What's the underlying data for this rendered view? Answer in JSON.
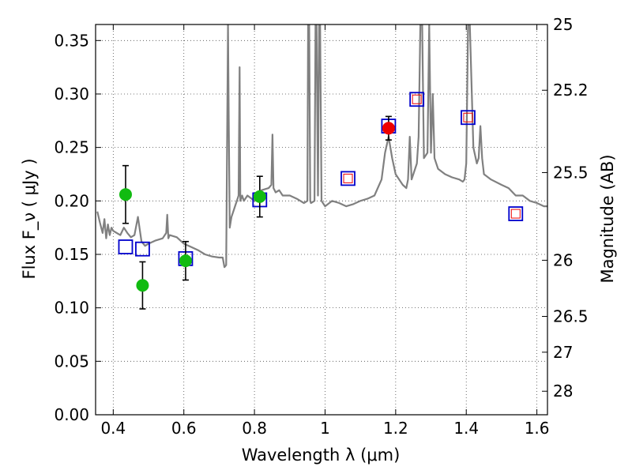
{
  "chart_data": {
    "type": "scatter",
    "xlabel": "Wavelength  λ (μm)",
    "ylabel": "Flux  F_ν  ( μJy )",
    "y2label": "Magnitude (AB)",
    "xlim": [
      0.35,
      1.63
    ],
    "ylim": [
      0.0,
      0.365
    ],
    "grid": true,
    "x_ticks": [
      0.4,
      0.6,
      0.8,
      1.0,
      1.2,
      1.4,
      1.6
    ],
    "x_tick_labels": [
      "0.4",
      "0.6",
      "0.8",
      "1",
      "1.2",
      "1.4",
      "1.6"
    ],
    "y_ticks": [
      0.0,
      0.05,
      0.1,
      0.15,
      0.2,
      0.25,
      0.3,
      0.35
    ],
    "y_tick_labels": [
      "0.00",
      "0.05",
      "0.10",
      "0.15",
      "0.20",
      "0.25",
      "0.30",
      "0.35"
    ],
    "y2_ticks": [
      {
        "label": "25",
        "flux": 0.365
      },
      {
        "label": "25.2",
        "flux": 0.3035
      },
      {
        "label": "25.5",
        "flux": 0.2265
      },
      {
        "label": "26",
        "flux": 0.1445
      },
      {
        "label": "26.5",
        "flux": 0.092
      },
      {
        "label": "27",
        "flux": 0.0585
      },
      {
        "label": "28",
        "flux": 0.022
      }
    ],
    "model_spectrum": {
      "name": "model",
      "color": "#808080",
      "x": [
        0.355,
        0.362,
        0.37,
        0.375,
        0.38,
        0.385,
        0.39,
        0.395,
        0.4,
        0.41,
        0.42,
        0.43,
        0.44,
        0.45,
        0.46,
        0.47,
        0.48,
        0.49,
        0.5,
        0.52,
        0.54,
        0.55,
        0.553,
        0.556,
        0.56,
        0.58,
        0.6,
        0.62,
        0.64,
        0.66,
        0.68,
        0.7,
        0.71,
        0.715,
        0.72,
        0.725,
        0.727,
        0.73,
        0.735,
        0.74,
        0.745,
        0.75,
        0.755,
        0.758,
        0.76,
        0.765,
        0.77,
        0.78,
        0.8,
        0.82,
        0.84,
        0.848,
        0.851,
        0.854,
        0.857,
        0.86,
        0.87,
        0.88,
        0.9,
        0.92,
        0.94,
        0.95,
        0.952,
        0.955,
        0.958,
        0.96,
        0.97,
        0.973,
        0.976,
        0.98,
        0.983,
        0.986,
        0.99,
        1.0,
        1.02,
        1.04,
        1.06,
        1.08,
        1.1,
        1.12,
        1.14,
        1.16,
        1.17,
        1.18,
        1.19,
        1.2,
        1.22,
        1.23,
        1.235,
        1.24,
        1.245,
        1.25,
        1.26,
        1.265,
        1.27,
        1.275,
        1.28,
        1.29,
        1.295,
        1.3,
        1.305,
        1.31,
        1.32,
        1.34,
        1.36,
        1.38,
        1.39,
        1.395,
        1.4,
        1.405,
        1.41,
        1.42,
        1.43,
        1.435,
        1.44,
        1.445,
        1.45,
        1.47,
        1.5,
        1.52,
        1.54,
        1.56,
        1.58,
        1.6,
        1.62,
        1.63
      ],
      "y": [
        0.19,
        0.18,
        0.17,
        0.183,
        0.165,
        0.178,
        0.168,
        0.175,
        0.172,
        0.17,
        0.168,
        0.175,
        0.17,
        0.166,
        0.168,
        0.185,
        0.162,
        0.158,
        0.16,
        0.163,
        0.165,
        0.17,
        0.187,
        0.165,
        0.168,
        0.166,
        0.16,
        0.157,
        0.154,
        0.15,
        0.148,
        0.147,
        0.147,
        0.138,
        0.14,
        0.365,
        0.28,
        0.175,
        0.185,
        0.19,
        0.195,
        0.2,
        0.205,
        0.325,
        0.2,
        0.205,
        0.2,
        0.205,
        0.2,
        0.21,
        0.212,
        0.215,
        0.262,
        0.212,
        0.21,
        0.208,
        0.21,
        0.205,
        0.205,
        0.202,
        0.198,
        0.2,
        0.365,
        0.365,
        0.2,
        0.198,
        0.2,
        0.365,
        0.365,
        0.205,
        0.365,
        0.365,
        0.2,
        0.195,
        0.2,
        0.198,
        0.195,
        0.197,
        0.2,
        0.202,
        0.205,
        0.22,
        0.245,
        0.26,
        0.24,
        0.225,
        0.215,
        0.212,
        0.22,
        0.26,
        0.22,
        0.225,
        0.235,
        0.26,
        0.365,
        0.365,
        0.24,
        0.245,
        0.365,
        0.245,
        0.3,
        0.24,
        0.23,
        0.225,
        0.222,
        0.22,
        0.218,
        0.22,
        0.235,
        0.365,
        0.365,
        0.25,
        0.235,
        0.24,
        0.27,
        0.24,
        0.225,
        0.22,
        0.215,
        0.212,
        0.205,
        0.205,
        0.2,
        0.198,
        0.195,
        0.195
      ],
      "clip_top": 0.365
    },
    "series": [
      {
        "name": "green-photometry",
        "marker": "circle",
        "color": "#11bb11",
        "points": [
          {
            "x": 0.435,
            "y": 0.206,
            "err": 0.027
          },
          {
            "x": 0.483,
            "y": 0.121,
            "err": 0.022
          },
          {
            "x": 0.605,
            "y": 0.144,
            "err": 0.018
          },
          {
            "x": 0.815,
            "y": 0.204,
            "err": 0.019
          }
        ]
      },
      {
        "name": "red-photometry",
        "marker": "circle",
        "color": "#ee0000",
        "points": [
          {
            "x": 1.18,
            "y": 0.268,
            "err": 0.011
          }
        ]
      },
      {
        "name": "blue-model-squares",
        "marker": "square-open",
        "color": "#0000cc",
        "points": [
          {
            "x": 0.435,
            "y": 0.157
          },
          {
            "x": 0.483,
            "y": 0.155
          },
          {
            "x": 0.605,
            "y": 0.146
          },
          {
            "x": 0.815,
            "y": 0.201
          },
          {
            "x": 1.065,
            "y": 0.221
          },
          {
            "x": 1.18,
            "y": 0.27
          },
          {
            "x": 1.26,
            "y": 0.295
          },
          {
            "x": 1.405,
            "y": 0.278
          },
          {
            "x": 1.54,
            "y": 0.188
          }
        ]
      },
      {
        "name": "red-model-squares",
        "marker": "square-open-small",
        "color": "#ee0000",
        "points": [
          {
            "x": 1.065,
            "y": 0.221
          },
          {
            "x": 1.26,
            "y": 0.295
          },
          {
            "x": 1.405,
            "y": 0.278
          },
          {
            "x": 1.54,
            "y": 0.188
          }
        ]
      }
    ]
  }
}
